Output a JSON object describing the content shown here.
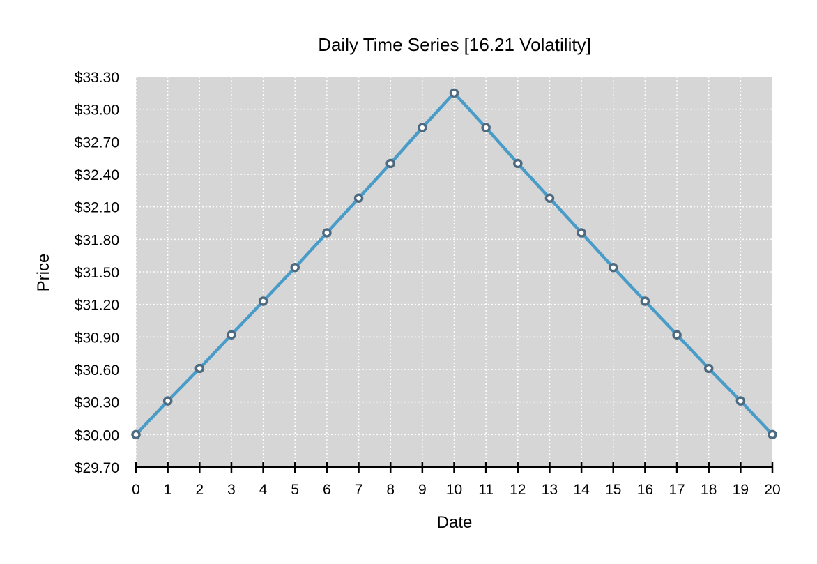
{
  "chart_data": {
    "type": "line",
    "title": "Daily Time Series [16.21 Volatility]",
    "xlabel": "Date",
    "ylabel": "Price",
    "x": [
      0,
      1,
      2,
      3,
      4,
      5,
      6,
      7,
      8,
      9,
      10,
      11,
      12,
      13,
      14,
      15,
      16,
      17,
      18,
      19,
      20
    ],
    "xlim": [
      0,
      20
    ],
    "ylim": [
      29.7,
      33.3
    ],
    "x_tick_labels": [
      "0",
      "1",
      "2",
      "3",
      "4",
      "5",
      "6",
      "7",
      "8",
      "9",
      "10",
      "11",
      "12",
      "13",
      "14",
      "15",
      "16",
      "17",
      "18",
      "19",
      "20"
    ],
    "y_ticks": [
      29.7,
      30.0,
      30.3,
      30.6,
      30.9,
      31.2,
      31.5,
      31.8,
      32.1,
      32.4,
      32.7,
      33.0,
      33.3
    ],
    "y_tick_labels": [
      "$29.70",
      "$30.00",
      "$30.30",
      "$30.60",
      "$30.90",
      "$31.20",
      "$31.50",
      "$31.80",
      "$32.10",
      "$32.40",
      "$32.70",
      "$33.00",
      "$33.30"
    ],
    "grid": true,
    "series": [
      {
        "values": [
          30.0,
          30.31,
          30.61,
          30.92,
          31.23,
          31.54,
          31.86,
          32.18,
          32.5,
          32.83,
          33.15,
          32.83,
          32.5,
          32.18,
          31.86,
          31.54,
          31.23,
          30.92,
          30.61,
          30.31,
          30.0
        ],
        "color": "#4a9cc8",
        "marker_edge_color": "#4d6a80"
      }
    ],
    "colors": {
      "plot_background": "#d6d6d6",
      "grid": "#ffffff",
      "axis": "#000000"
    }
  }
}
